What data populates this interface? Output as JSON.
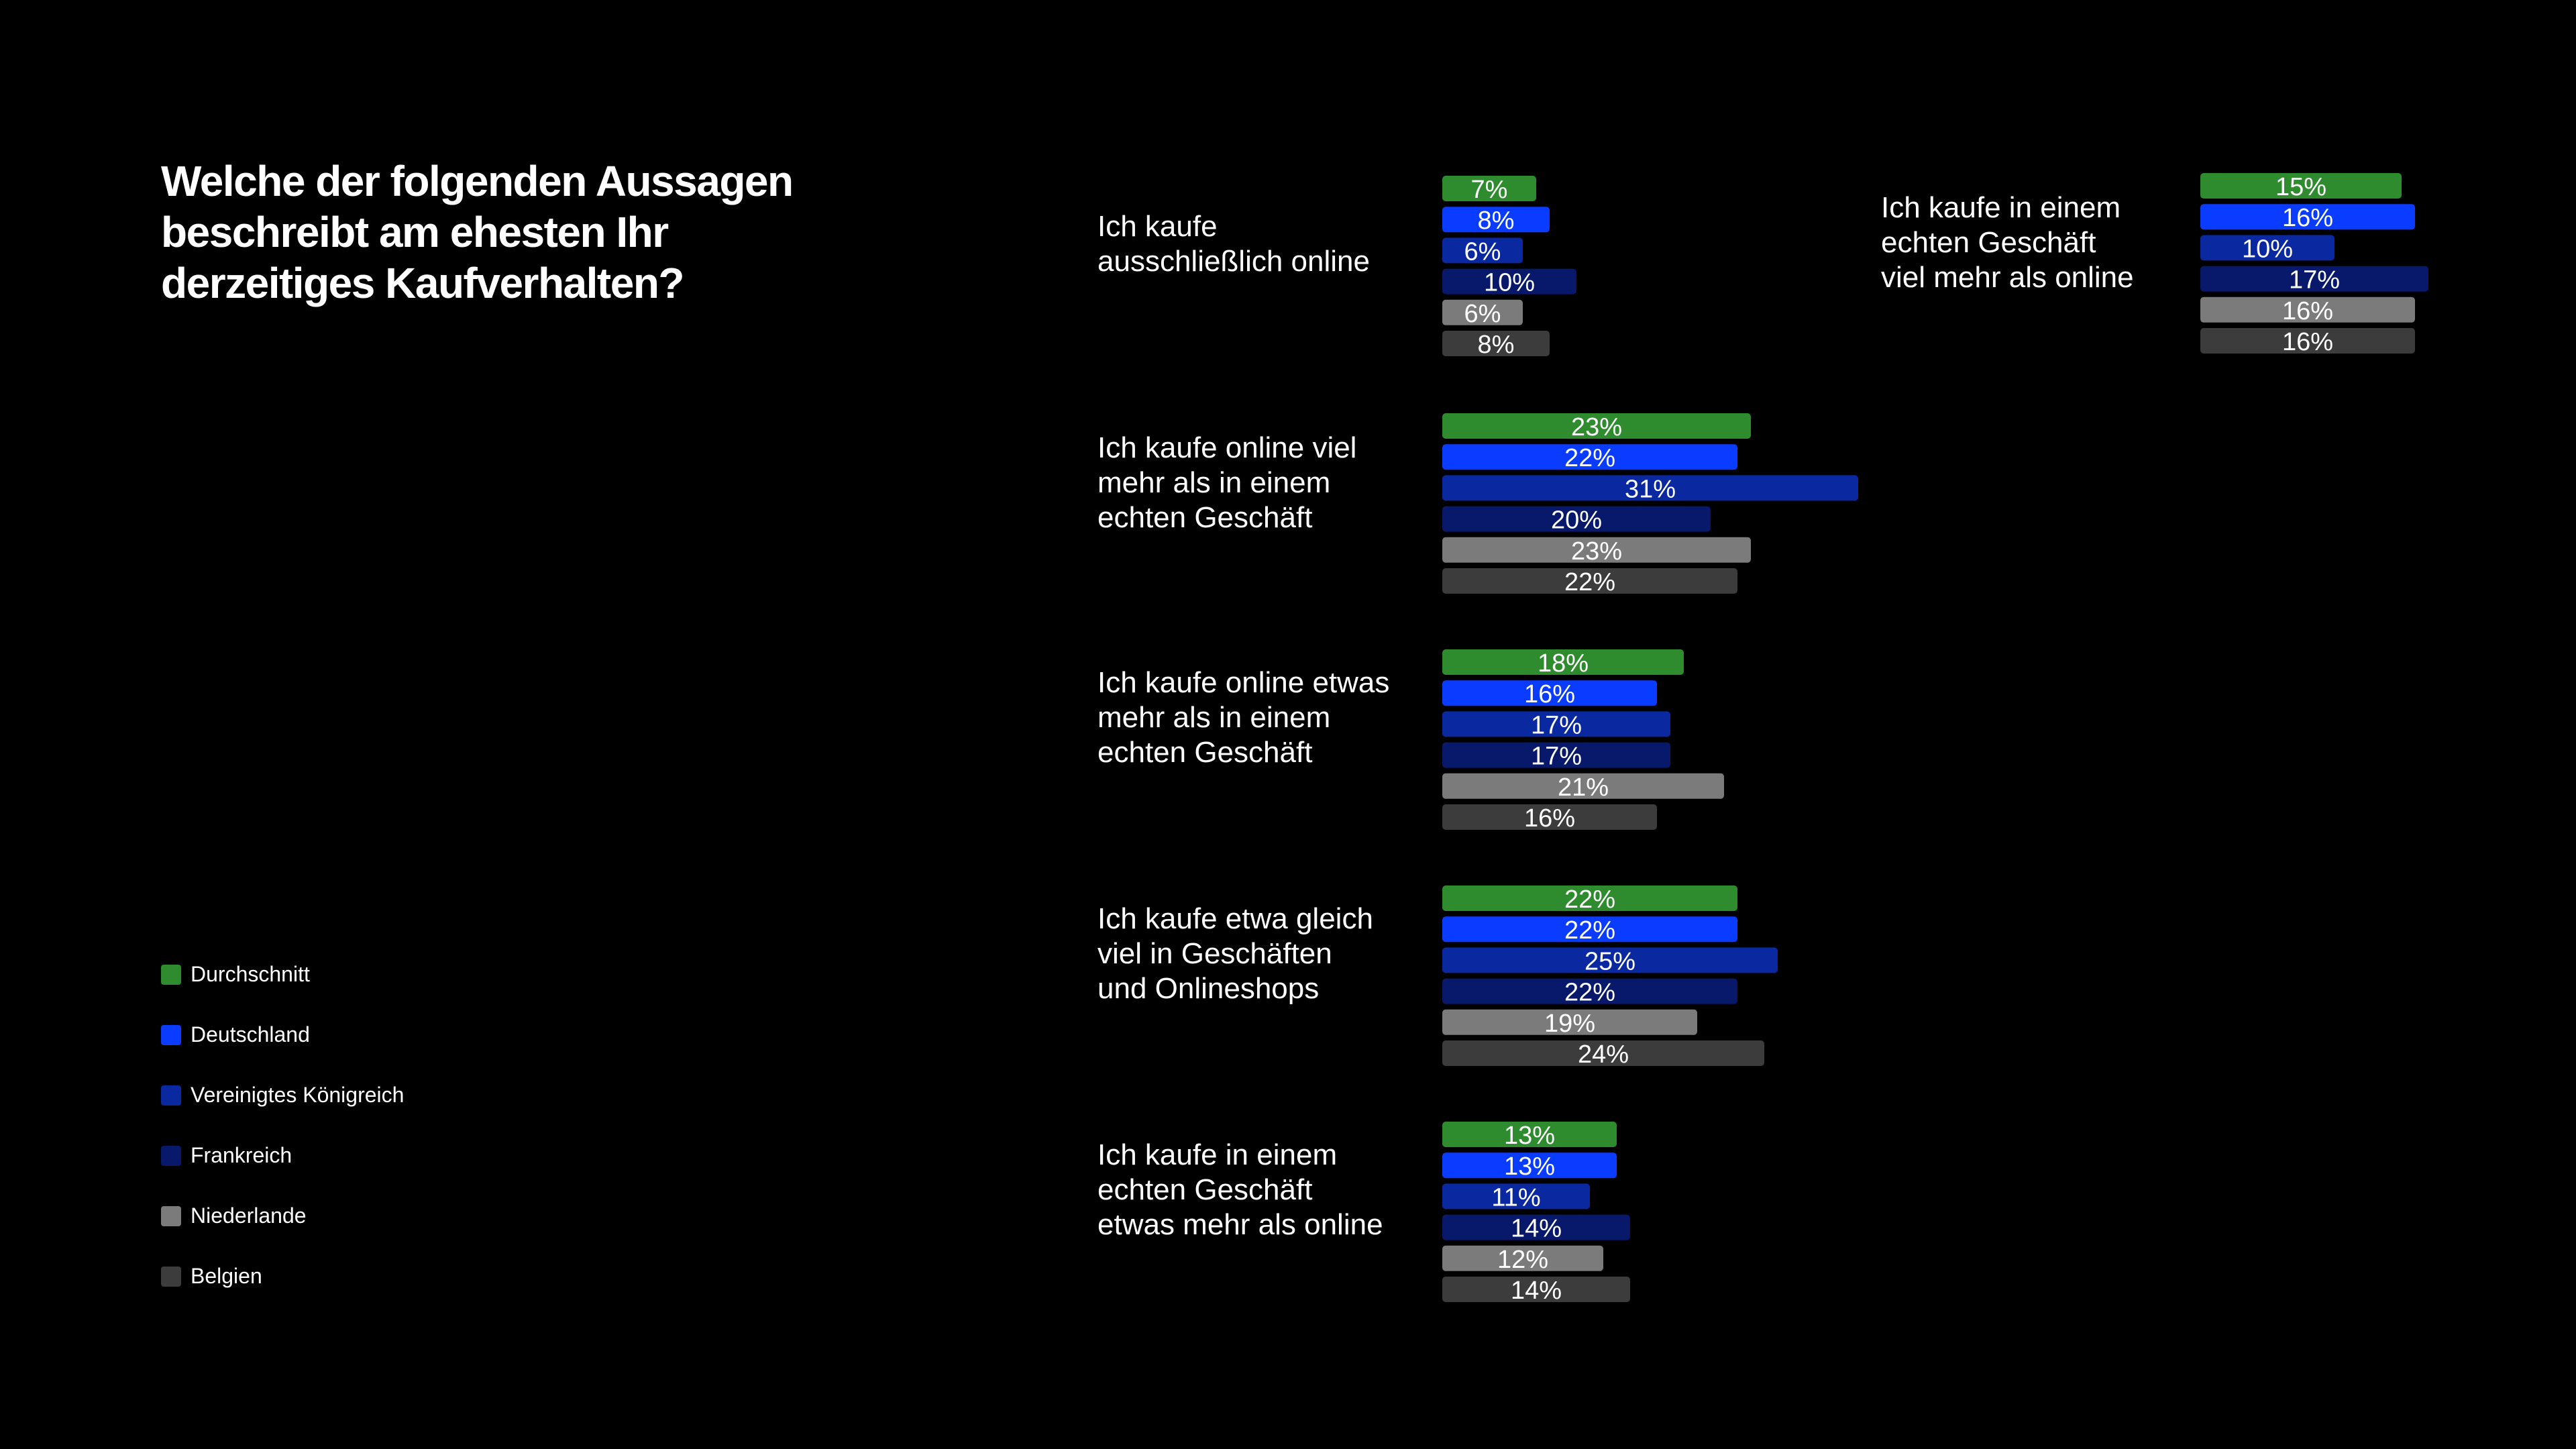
{
  "title": "Welche der folgenden Aussagen beschreibt am ehesten Ihr derzeitiges Kaufverhalten?",
  "legend": [
    {
      "label": "Durchschnitt",
      "color": "#2e8b2e"
    },
    {
      "label": "Deutschland",
      "color": "#0a3cff"
    },
    {
      "label": "Vereinigtes Königreich",
      "color": "#0a28a0"
    },
    {
      "label": "Frankreich",
      "color": "#08186b"
    },
    {
      "label": "Niederlande",
      "color": "#7b7b7b"
    },
    {
      "label": "Belgien",
      "color": "#3c3c3c"
    }
  ],
  "chart_data": {
    "type": "bar",
    "orientation": "horizontal",
    "unit": "%",
    "series": [
      {
        "name": "Durchschnitt",
        "color": "#2e8b2e"
      },
      {
        "name": "Deutschland",
        "color": "#0a3cff"
      },
      {
        "name": "Vereinigtes Königreich",
        "color": "#0a28a0"
      },
      {
        "name": "Frankreich",
        "color": "#08186b"
      },
      {
        "name": "Niederlande",
        "color": "#7b7b7b"
      },
      {
        "name": "Belgien",
        "color": "#3c3c3c"
      }
    ],
    "groups": [
      {
        "label": [
          "Ich kaufe",
          "ausschließlich online"
        ],
        "values": [
          7,
          8,
          6,
          10,
          6,
          8
        ]
      },
      {
        "label": [
          "Ich kaufe online viel",
          "mehr als in einem",
          "echten Geschäft"
        ],
        "values": [
          23,
          22,
          31,
          20,
          23,
          22
        ]
      },
      {
        "label": [
          "Ich kaufe online etwas",
          "mehr als in einem",
          "echten Geschäft"
        ],
        "values": [
          18,
          16,
          17,
          17,
          21,
          16
        ]
      },
      {
        "label": [
          "Ich kaufe etwa gleich",
          "viel in Geschäften",
          "und Onlineshops"
        ],
        "values": [
          22,
          22,
          25,
          22,
          19,
          24
        ]
      },
      {
        "label": [
          "Ich kaufe in einem",
          "echten Geschäft",
          "etwas mehr als online"
        ],
        "values": [
          13,
          13,
          11,
          14,
          12,
          14
        ]
      },
      {
        "label": [
          "Ich kaufe in einem",
          "echten Geschäft",
          "viel mehr als online"
        ],
        "values": [
          15,
          16,
          10,
          17,
          16,
          16
        ]
      }
    ]
  }
}
